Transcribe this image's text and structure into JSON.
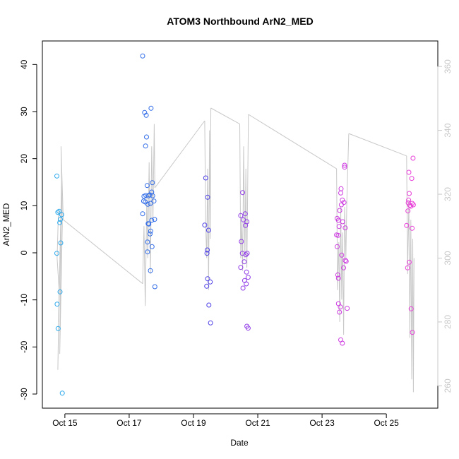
{
  "chart_data": {
    "type": "scatter",
    "title": "ATOM3 Northbound ArN2_MED",
    "xlabel": "Date",
    "ylabel": "ArN2_MED",
    "x_unit": "days",
    "x_ticks": [
      {
        "label": "Oct 15",
        "value": 15
      },
      {
        "label": "Oct 17",
        "value": 17
      },
      {
        "label": "Oct 19",
        "value": 19
      },
      {
        "label": "Oct 21",
        "value": 21
      },
      {
        "label": "Oct 23",
        "value": 23
      },
      {
        "label": "Oct 25",
        "value": 25
      }
    ],
    "xlim": [
      14.3,
      26.6
    ],
    "ylim": [
      -33,
      45
    ],
    "y_ticks": [
      -30,
      -20,
      -10,
      0,
      10,
      20,
      30,
      40
    ],
    "y2lim": [
      253,
      368
    ],
    "y2_ticks": [
      260,
      280,
      300,
      320,
      340,
      360
    ],
    "grid": false,
    "series": [
      {
        "color": "#29a8ec",
        "points": [
          [
            14.75,
            16.3
          ],
          [
            14.78,
            8.6
          ],
          [
            14.82,
            8.8
          ],
          [
            14.84,
            6.4
          ],
          [
            14.9,
            8.1
          ],
          [
            14.86,
            7.1
          ],
          [
            14.87,
            2.1
          ],
          [
            14.75,
            -0.1
          ],
          [
            14.76,
            -10.9
          ],
          [
            14.79,
            -16.1
          ],
          [
            14.85,
            -8.3
          ],
          [
            14.92,
            -29.8
          ]
        ]
      },
      {
        "color": "#2f6be8",
        "points": [
          [
            17.42,
            41.8
          ],
          [
            17.48,
            29.8
          ],
          [
            17.53,
            29.2
          ],
          [
            17.68,
            30.7
          ],
          [
            17.54,
            24.6
          ],
          [
            17.51,
            22.7
          ],
          [
            17.56,
            14.3
          ],
          [
            17.72,
            14.9
          ],
          [
            17.7,
            12.9
          ],
          [
            17.46,
            12.0
          ],
          [
            17.52,
            12.2
          ],
          [
            17.6,
            12.1
          ],
          [
            17.64,
            12.3
          ],
          [
            17.73,
            12.1
          ],
          [
            17.45,
            11.0
          ],
          [
            17.5,
            10.8
          ],
          [
            17.58,
            10.3
          ],
          [
            17.66,
            10.5
          ],
          [
            17.77,
            11.0
          ],
          [
            17.42,
            8.3
          ],
          [
            17.61,
            6.1
          ],
          [
            17.7,
            6.9
          ],
          [
            17.79,
            7.1
          ],
          [
            17.59,
            6.2
          ],
          [
            17.67,
            4.6
          ],
          [
            17.65,
            4.0
          ],
          [
            17.57,
            2.3
          ],
          [
            17.71,
            1.3
          ],
          [
            17.57,
            0.2
          ],
          [
            17.66,
            -3.8
          ],
          [
            17.8,
            -7.2
          ]
        ]
      },
      {
        "color": "#4d3fe6",
        "points": [
          [
            19.38,
            15.9
          ],
          [
            19.44,
            11.8
          ],
          [
            19.35,
            5.9
          ],
          [
            19.47,
            4.8
          ],
          [
            19.43,
            0.6
          ],
          [
            19.42,
            -0.1
          ],
          [
            19.44,
            -5.5
          ],
          [
            19.41,
            -7.1
          ],
          [
            19.52,
            -6.2
          ],
          [
            19.48,
            -11.1
          ],
          [
            19.53,
            -14.9
          ]
        ]
      },
      {
        "color": "#8f3ae6",
        "points": [
          [
            20.53,
            12.8
          ],
          [
            20.47,
            7.9
          ],
          [
            20.61,
            8.3
          ],
          [
            20.55,
            7.0
          ],
          [
            20.66,
            6.6
          ],
          [
            20.62,
            5.8
          ],
          [
            20.49,
            2.4
          ],
          [
            20.52,
            -0.1
          ],
          [
            20.63,
            -0.4
          ],
          [
            20.67,
            -0.1
          ],
          [
            20.58,
            -1.9
          ],
          [
            20.65,
            -4.1
          ],
          [
            20.7,
            -5.2
          ],
          [
            20.59,
            -5.9
          ],
          [
            20.47,
            -3.1
          ],
          [
            20.54,
            -7.5
          ],
          [
            20.64,
            -6.6
          ],
          [
            20.66,
            -15.6
          ],
          [
            20.7,
            -16.0
          ]
        ]
      },
      {
        "color": "#cd38e0",
        "points": [
          [
            23.7,
            18.6
          ],
          [
            23.7,
            18.2
          ],
          [
            23.59,
            13.6
          ],
          [
            23.58,
            12.7
          ],
          [
            23.63,
            11.2
          ],
          [
            23.68,
            10.7
          ],
          [
            23.6,
            10.2
          ],
          [
            23.55,
            9.0
          ],
          [
            23.51,
            6.9
          ],
          [
            23.47,
            7.3
          ],
          [
            23.64,
            6.6
          ],
          [
            23.53,
            5.6
          ],
          [
            23.72,
            5.3
          ],
          [
            23.5,
            3.7
          ],
          [
            23.45,
            3.8
          ],
          [
            23.47,
            1.3
          ],
          [
            23.61,
            -0.5
          ],
          [
            23.72,
            -1.6
          ],
          [
            23.75,
            -1.8
          ],
          [
            23.67,
            -3.2
          ],
          [
            23.49,
            -4.7
          ],
          [
            23.51,
            -5.4
          ],
          [
            23.51,
            -10.8
          ],
          [
            23.57,
            -11.5
          ],
          [
            23.54,
            -12.6
          ],
          [
            23.78,
            -11.8
          ],
          [
            23.58,
            -18.5
          ],
          [
            23.63,
            -19.2
          ]
        ]
      },
      {
        "color": "#e83cd8",
        "points": [
          [
            25.83,
            20.1
          ],
          [
            25.7,
            17.1
          ],
          [
            25.79,
            15.8
          ],
          [
            25.71,
            12.6
          ],
          [
            25.69,
            11.2
          ],
          [
            25.68,
            10.6
          ],
          [
            25.73,
            10.1
          ],
          [
            25.76,
            9.9
          ],
          [
            25.84,
            10.2
          ],
          [
            25.8,
            10.5
          ],
          [
            25.67,
            8.9
          ],
          [
            25.63,
            5.8
          ],
          [
            25.8,
            5.2
          ],
          [
            25.71,
            -2.0
          ],
          [
            25.66,
            -3.2
          ],
          [
            25.77,
            -11.9
          ],
          [
            25.81,
            -16.9
          ]
        ]
      }
    ],
    "secondary_line": {
      "color": "#c8c8c8",
      "axis": "right",
      "segments": [
        [
          [
            14.8,
            315
          ],
          [
            14.76,
            300
          ],
          [
            14.82,
            290
          ],
          [
            14.78,
            265
          ],
          [
            14.86,
            305
          ],
          [
            14.8,
            280
          ],
          [
            14.9,
            325
          ],
          [
            14.84,
            270
          ],
          [
            14.92,
            310
          ],
          [
            14.88,
            335
          ],
          [
            14.95,
            312
          ]
        ],
        [
          [
            14.95,
            312
          ],
          [
            17.42,
            292
          ]
        ],
        [
          [
            17.42,
            292
          ],
          [
            17.46,
            310
          ],
          [
            17.5,
            285
          ],
          [
            17.55,
            320
          ],
          [
            17.58,
            300
          ],
          [
            17.62,
            330
          ],
          [
            17.66,
            295
          ],
          [
            17.7,
            335
          ],
          [
            17.74,
            312
          ],
          [
            17.78,
            342
          ],
          [
            17.8,
            322
          ]
        ],
        [
          [
            17.8,
            322
          ],
          [
            19.35,
            343
          ]
        ],
        [
          [
            19.35,
            343
          ],
          [
            19.38,
            310
          ],
          [
            19.41,
            300
          ],
          [
            19.44,
            328
          ],
          [
            19.47,
            290
          ],
          [
            19.5,
            340
          ],
          [
            19.52,
            306
          ],
          [
            19.54,
            347
          ]
        ],
        [
          [
            19.54,
            347
          ],
          [
            20.44,
            342
          ]
        ],
        [
          [
            20.44,
            342
          ],
          [
            20.47,
            300
          ],
          [
            20.5,
            312
          ],
          [
            20.53,
            296
          ],
          [
            20.56,
            335
          ],
          [
            20.6,
            300
          ],
          [
            20.63,
            328
          ],
          [
            20.66,
            297
          ]
        ],
        [
          [
            20.66,
            297
          ],
          [
            20.71,
            345
          ]
        ],
        [
          [
            20.71,
            345
          ],
          [
            23.45,
            328
          ]
        ],
        [
          [
            23.45,
            328
          ],
          [
            23.48,
            290
          ],
          [
            23.52,
            305
          ],
          [
            23.55,
            280
          ],
          [
            23.58,
            316
          ],
          [
            23.61,
            287
          ],
          [
            23.64,
            308
          ],
          [
            23.67,
            276
          ],
          [
            23.7,
            316
          ],
          [
            23.74,
            300
          ],
          [
            23.77,
            318
          ],
          [
            23.83,
            339
          ]
        ],
        [
          [
            23.83,
            339
          ],
          [
            25.63,
            332
          ]
        ],
        [
          [
            25.63,
            332
          ],
          [
            25.66,
            295
          ],
          [
            25.7,
            318
          ],
          [
            25.73,
            275
          ],
          [
            25.76,
            312
          ],
          [
            25.79,
            262
          ],
          [
            25.82,
            306
          ],
          [
            25.84,
            258
          ],
          [
            25.86,
            300
          ]
        ]
      ]
    }
  }
}
